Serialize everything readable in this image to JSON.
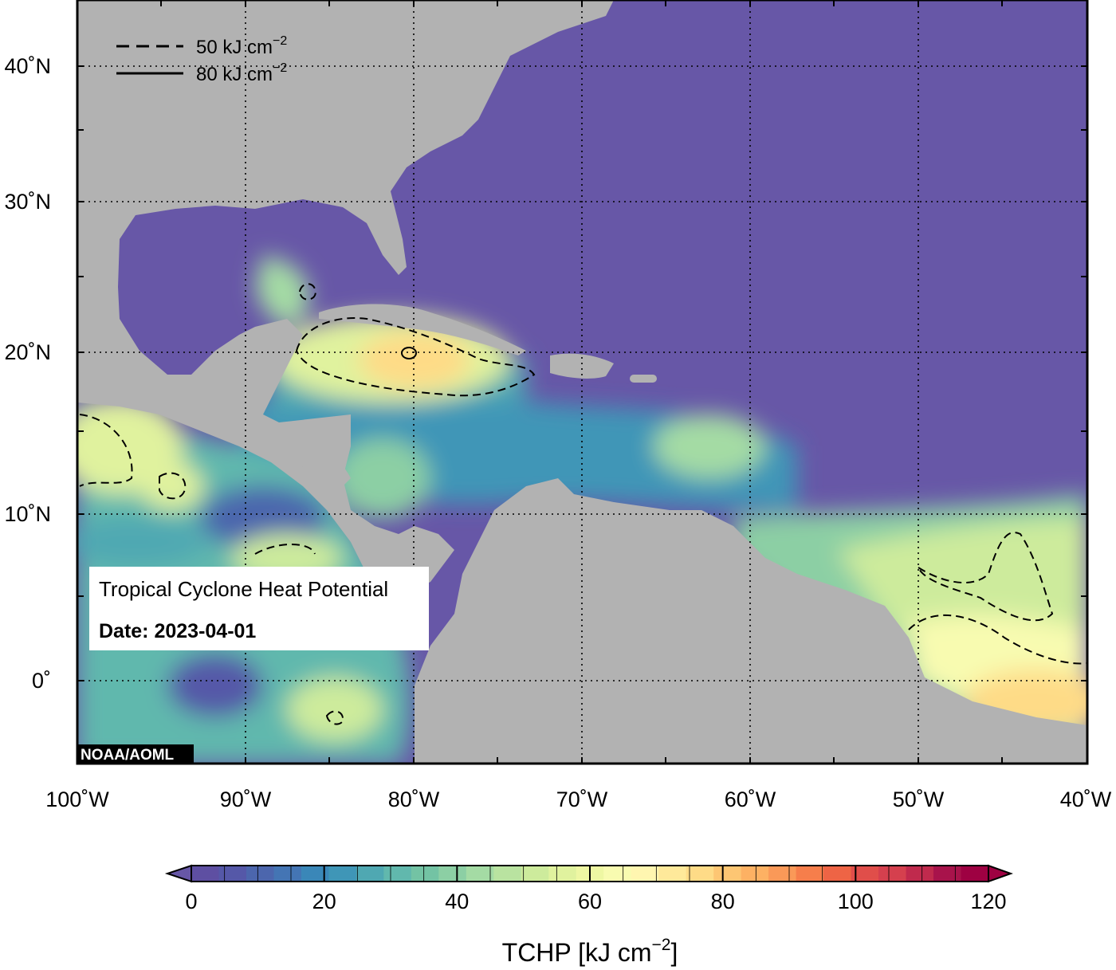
{
  "map": {
    "title": "Tropical Cyclone Heat Potential",
    "date_label": "Date: 2023-04-01",
    "credit": "NOAA/AOML",
    "lon_labels": [
      "100˚W",
      "90˚W",
      "80˚W",
      "70˚W",
      "60˚W",
      "50˚W",
      "40˚W"
    ],
    "lat_labels": [
      "40˚N",
      "30˚N",
      "20˚N",
      "10˚N",
      "0˚"
    ],
    "land_color": "#b2b2b2",
    "low_color": "#6757a7"
  },
  "legend": {
    "dashed_prefix": "50 kJ cm",
    "solid_prefix": "80 kJ cm",
    "exponent": "−2"
  },
  "colorbar": {
    "ticks": [
      "0",
      "20",
      "40",
      "60",
      "80",
      "100",
      "120"
    ],
    "label_prefix": "TCHP [kJ cm",
    "label_exp": "−2",
    "label_suffix": "]",
    "colors": [
      "#5e4fa2",
      "#5558a8",
      "#4c66ad",
      "#4475b4",
      "#3a87b8",
      "#3f96b7",
      "#4fa8b2",
      "#61b8ad",
      "#73c3a4",
      "#8ccfa4",
      "#a4dba4",
      "#b9e3a0",
      "#cdeb9c",
      "#e0f29e",
      "#eef7a3",
      "#f8fbb0",
      "#fff6b0",
      "#fee99a",
      "#fedb87",
      "#fdc673",
      "#fdb163",
      "#fa9958",
      "#f67e4b",
      "#ee6445",
      "#e04e4a",
      "#d5404e",
      "#c02a4d",
      "#a8134b",
      "#9e0142"
    ]
  }
}
